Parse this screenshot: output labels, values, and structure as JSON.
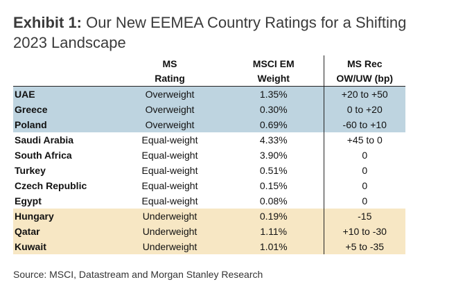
{
  "exhibit": {
    "label": "Exhibit 1:",
    "title_line1": "Our New EEMEA Country Ratings for a Shifting",
    "title_line2": "2023 Landscape"
  },
  "table": {
    "headers": {
      "country": "",
      "rating_line1": "MS",
      "rating_line2": "Rating",
      "weight_line1": "MSCI EM",
      "weight_line2": "Weight",
      "rec_line1": "MS Rec",
      "rec_line2": "OW/UW (bp)"
    },
    "rows": [
      {
        "country": "UAE",
        "rating": "Overweight",
        "weight": "1.35%",
        "rec": "+20 to +50",
        "tier": "overweight"
      },
      {
        "country": "Greece",
        "rating": "Overweight",
        "weight": "0.30%",
        "rec": "0 to +20",
        "tier": "overweight"
      },
      {
        "country": "Poland",
        "rating": "Overweight",
        "weight": "0.69%",
        "rec": "-60 to +10",
        "tier": "overweight"
      },
      {
        "country": "Saudi Arabia",
        "rating": "Equal-weight",
        "weight": "4.33%",
        "rec": "+45 to 0",
        "tier": "equalweight"
      },
      {
        "country": "South Africa",
        "rating": "Equal-weight",
        "weight": "3.90%",
        "rec": "0",
        "tier": "equalweight"
      },
      {
        "country": "Turkey",
        "rating": "Equal-weight",
        "weight": "0.51%",
        "rec": "0",
        "tier": "equalweight"
      },
      {
        "country": "Czech Republic",
        "rating": "Equal-weight",
        "weight": "0.15%",
        "rec": "0",
        "tier": "equalweight"
      },
      {
        "country": "Egypt",
        "rating": "Equal-weight",
        "weight": "0.08%",
        "rec": "0",
        "tier": "equalweight"
      },
      {
        "country": "Hungary",
        "rating": "Underweight",
        "weight": "0.19%",
        "rec": "-15",
        "tier": "underweight"
      },
      {
        "country": "Qatar",
        "rating": "Underweight",
        "weight": "1.11%",
        "rec": "+10 to -30",
        "tier": "underweight"
      },
      {
        "country": "Kuwait",
        "rating": "Underweight",
        "weight": "1.01%",
        "rec": "+5 to -35",
        "tier": "underweight"
      }
    ]
  },
  "colors": {
    "overweight_fill": "#bed4e0",
    "underweight_fill": "#f7e7c4",
    "equalweight_fill": "#ffffff"
  },
  "source": "Source: MSCI, Datastream and Morgan Stanley Research"
}
